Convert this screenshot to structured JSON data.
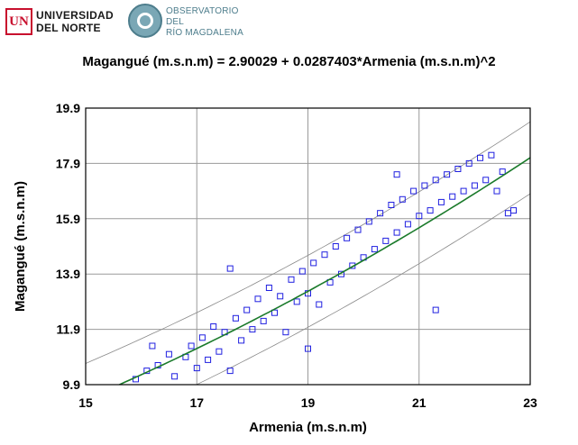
{
  "logos": {
    "university": {
      "badge": "UN",
      "line1": "UNIVERSIDAD",
      "line2": "DEL NORTE"
    },
    "observatory": {
      "line1": "OBSERVATORIO DEL",
      "line2": "RÍO MAGDALENA"
    }
  },
  "chart_data": {
    "type": "scatter",
    "title": "Magangué (m.s.n.m) = 2.90029 + 0.0287403*Armenia  (m.s.n.m)^2",
    "xlabel": "Armenia  (m.s.n.m)",
    "ylabel": "Magangué (m.s.n.m)",
    "xlim": [
      15,
      23
    ],
    "ylim": [
      9.9,
      19.9
    ],
    "x_ticks": [
      "15",
      "17",
      "19",
      "21",
      "23"
    ],
    "y_ticks": [
      "9.9",
      "11.9",
      "13.9",
      "15.9",
      "17.9",
      "19.9"
    ],
    "grid": true,
    "legend": "none",
    "model": {
      "intercept": 2.90029,
      "coef": 0.0287403,
      "x_power": 2
    },
    "prediction_band_halfwidth": 1.3,
    "series": [
      {
        "values_description_free": true,
        "points": [
          [
            15.9,
            10.1
          ],
          [
            16.1,
            10.4
          ],
          [
            16.3,
            10.6
          ],
          [
            16.5,
            11.0
          ],
          [
            16.6,
            10.2
          ],
          [
            16.8,
            10.9
          ],
          [
            16.9,
            11.3
          ],
          [
            17.0,
            10.5
          ],
          [
            17.1,
            11.6
          ],
          [
            17.2,
            10.8
          ],
          [
            17.3,
            12.0
          ],
          [
            17.4,
            11.1
          ],
          [
            17.5,
            11.8
          ],
          [
            17.6,
            10.4
          ],
          [
            17.7,
            12.3
          ],
          [
            17.8,
            11.5
          ],
          [
            17.9,
            12.6
          ],
          [
            18.0,
            11.9
          ],
          [
            18.1,
            13.0
          ],
          [
            18.2,
            12.2
          ],
          [
            18.3,
            13.4
          ],
          [
            18.4,
            12.5
          ],
          [
            18.5,
            13.1
          ],
          [
            18.6,
            11.8
          ],
          [
            18.7,
            13.7
          ],
          [
            18.8,
            12.9
          ],
          [
            18.9,
            14.0
          ],
          [
            19.0,
            13.2
          ],
          [
            19.1,
            14.3
          ],
          [
            19.2,
            12.8
          ],
          [
            19.3,
            14.6
          ],
          [
            19.4,
            13.6
          ],
          [
            19.5,
            14.9
          ],
          [
            19.6,
            13.9
          ],
          [
            19.7,
            15.2
          ],
          [
            19.8,
            14.2
          ],
          [
            19.9,
            15.5
          ],
          [
            20.0,
            14.5
          ],
          [
            20.1,
            15.8
          ],
          [
            20.2,
            14.8
          ],
          [
            20.3,
            16.1
          ],
          [
            20.4,
            15.1
          ],
          [
            20.5,
            16.4
          ],
          [
            20.6,
            15.4
          ],
          [
            20.7,
            16.6
          ],
          [
            20.8,
            15.7
          ],
          [
            20.9,
            16.9
          ],
          [
            21.0,
            16.0
          ],
          [
            21.1,
            17.1
          ],
          [
            21.2,
            16.2
          ],
          [
            21.3,
            17.3
          ],
          [
            21.4,
            16.5
          ],
          [
            21.5,
            17.5
          ],
          [
            21.6,
            16.7
          ],
          [
            21.7,
            17.7
          ],
          [
            21.8,
            16.9
          ],
          [
            21.9,
            17.9
          ],
          [
            22.0,
            17.1
          ],
          [
            22.1,
            18.1
          ],
          [
            22.2,
            17.3
          ],
          [
            22.3,
            18.2
          ],
          [
            22.4,
            16.9
          ],
          [
            22.5,
            17.6
          ],
          [
            22.6,
            16.1
          ],
          [
            22.7,
            16.2
          ],
          [
            17.6,
            14.1
          ],
          [
            19.0,
            11.2
          ],
          [
            21.3,
            12.6
          ],
          [
            16.2,
            11.3
          ],
          [
            20.6,
            17.5
          ]
        ]
      }
    ],
    "colors": {
      "points": "#2020e0",
      "fit_line": "#1a7a2a",
      "band": "#888888",
      "grid": "#9a9a9a",
      "frame": "#000000"
    }
  }
}
